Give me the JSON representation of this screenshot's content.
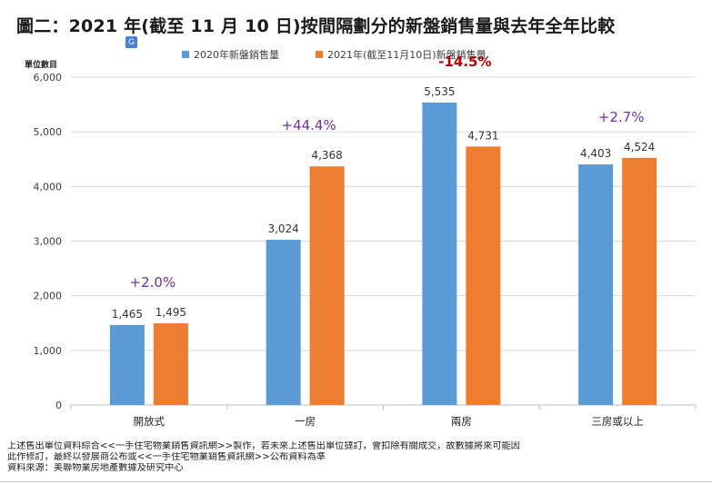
{
  "title": "圖二：2021 年(截至 11 月 10 日)按間隔劃分的新盤銷售量與去年全年比較",
  "translate_icon": "translate-icon",
  "unit_label": "單位數目",
  "colors": {
    "series_2020": "#5b9bd5",
    "series_2021": "#ed7d31",
    "pct_positive": "#7030a0",
    "pct_negative": "#c00000",
    "axis_text": "#404040",
    "gridline": "#d9d9d9"
  },
  "chart_data": {
    "type": "bar",
    "title": "",
    "xlabel": "",
    "ylabel": "單位數目",
    "ylim": [
      0,
      6000
    ],
    "yticks": [
      "0",
      "1,000",
      "2,000",
      "3,000",
      "4,000",
      "5,000",
      "6,000"
    ],
    "ytick_values": [
      0,
      1000,
      2000,
      3000,
      4000,
      5000,
      6000
    ],
    "grid": true,
    "legend_position": "top-center",
    "categories": [
      "開放式",
      "一房",
      "兩房",
      "三房或以上"
    ],
    "series": [
      {
        "name": "2020年新盤銷售量",
        "values": [
          1465,
          3024,
          5535,
          4403
        ],
        "labels": [
          "1,465",
          "3,024",
          "5,535",
          "4,403"
        ]
      },
      {
        "name": "2021年(截至11月10日)新盤銷售量",
        "values": [
          1495,
          4368,
          4731,
          4524
        ],
        "labels": [
          "1,495",
          "4,368",
          "4,731",
          "4,524"
        ]
      }
    ],
    "annotations": [
      {
        "text": "+2.0%",
        "category": "開放式",
        "sign": "positive"
      },
      {
        "text": "+44.4%",
        "category": "一房",
        "sign": "positive"
      },
      {
        "text": "-14.5%",
        "category": "兩房",
        "sign": "negative"
      },
      {
        "text": "+2.7%",
        "category": "三房或以上",
        "sign": "positive"
      }
    ]
  },
  "footnote": {
    "line1": "上述售出單位資料綜合<<一手住宅物業銷售資訊網>>製作，若未來上述售出單位撻訂，會扣除有關成交，故數據將來可能因",
    "line2": "此作修訂，最終以發展商公布或<<一手住宅物業銷售資訊網>>公布資料為準",
    "line3": "資料來源：美聯物業房地產數據及研究中心"
  }
}
